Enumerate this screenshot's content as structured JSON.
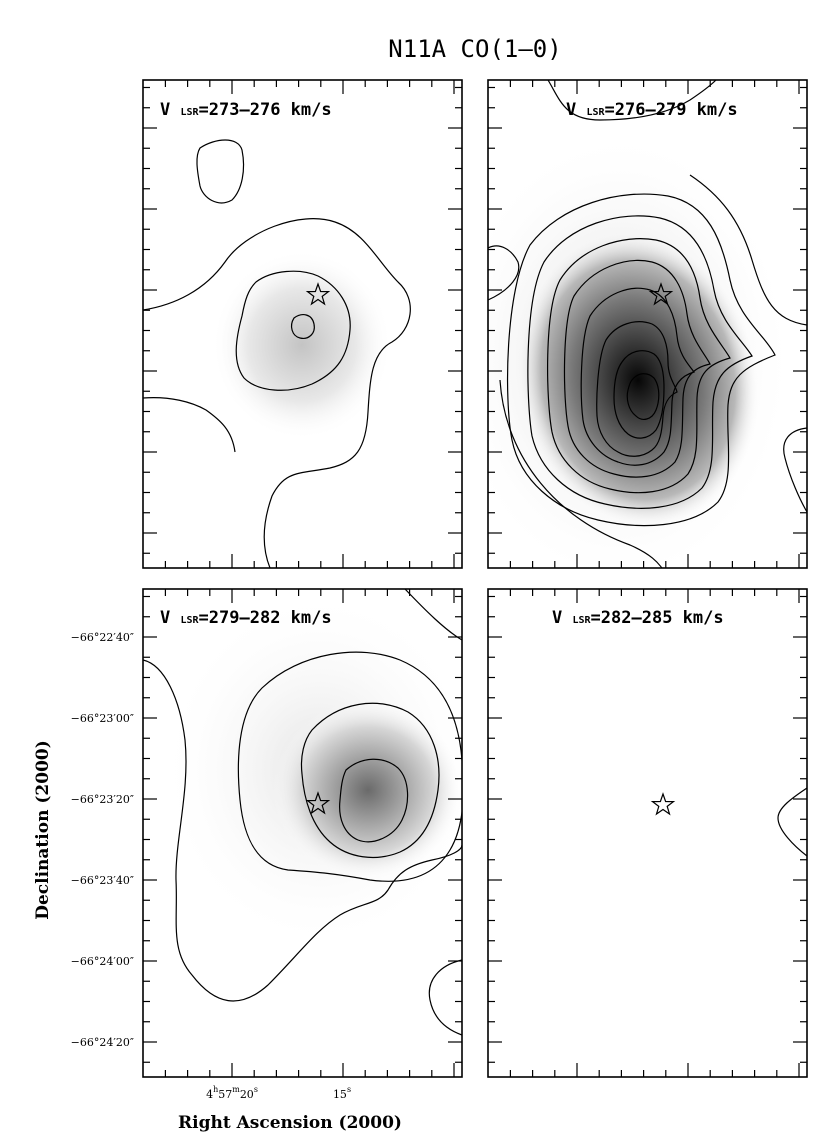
{
  "chart_data": {
    "type": "contour",
    "title": "N11A CO(1–0)",
    "xlabel": "Right Ascension (2000)",
    "ylabel": "Declination (2000)",
    "x_tick_labels": [
      {
        "h": "4",
        "m": "57",
        "s": "20",
        "value_s": 20
      },
      {
        "s": "15",
        "value_s": 15
      }
    ],
    "y_tick_labels": [
      "−66°22′40″",
      "−66°23′00″",
      "−66°23′20″",
      "−66°23′40″",
      "−66°24′00″",
      "−66°24′20″"
    ],
    "velocity_label": {
      "prefix": "V",
      "subscript": "LSR",
      "unit": "km/s"
    },
    "marker": "star",
    "panels": [
      {
        "name": "273–276",
        "v_range": [
          273,
          276
        ],
        "label": "=273–276 km/s",
        "peak_intensity": 0.35,
        "n_contours": 3
      },
      {
        "name": "276–279",
        "v_range": [
          276,
          279
        ],
        "label": "=276–279 km/s",
        "peak_intensity": 1.0,
        "n_contours": 9
      },
      {
        "name": "279–282",
        "v_range": [
          279,
          282
        ],
        "label": "=279–282 km/s",
        "peak_intensity": 0.45,
        "n_contours": 4
      },
      {
        "name": "282–285",
        "v_range": [
          282,
          285
        ],
        "label": "=282–285 km/s",
        "peak_intensity": 0.02,
        "n_contours": 1
      }
    ]
  }
}
